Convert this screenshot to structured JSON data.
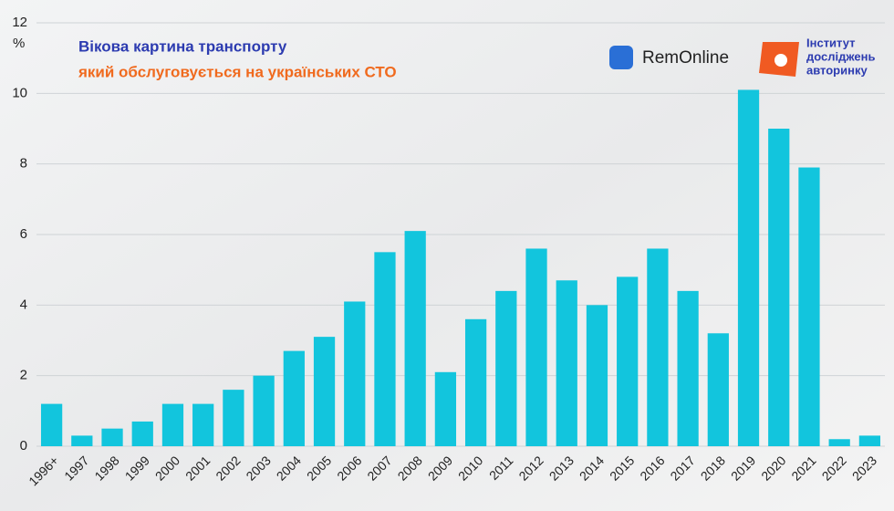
{
  "chart_data": {
    "type": "bar",
    "title": "Вікова картина транспорту",
    "subtitle": "який обслуговується на українських СТО",
    "y_label": "%",
    "categories": [
      "1996+",
      "1997",
      "1998",
      "1999",
      "2000",
      "2001",
      "2002",
      "2003",
      "2004",
      "2005",
      "2006",
      "2007",
      "2008",
      "2009",
      "2010",
      "2011",
      "2012",
      "2013",
      "2014",
      "2015",
      "2016",
      "2017",
      "2018",
      "2019",
      "2020",
      "2021",
      "2022",
      "2023"
    ],
    "values": [
      1.2,
      0.3,
      0.5,
      0.7,
      1.2,
      1.2,
      1.6,
      2.0,
      2.7,
      3.1,
      4.1,
      5.5,
      6.1,
      2.1,
      3.6,
      4.4,
      5.6,
      4.7,
      4.0,
      4.8,
      5.6,
      4.4,
      3.2,
      10.1,
      9.0,
      7.9,
      0.2,
      0.3
    ],
    "color": "#12c5dd",
    "ylim": [
      0,
      12
    ],
    "yticks": [
      0,
      2,
      4,
      6,
      8,
      10,
      12
    ],
    "grid": true
  },
  "logos": {
    "remonline": "RemOnline",
    "institute": [
      "Інститут",
      "досліджень",
      "авторинку"
    ]
  }
}
